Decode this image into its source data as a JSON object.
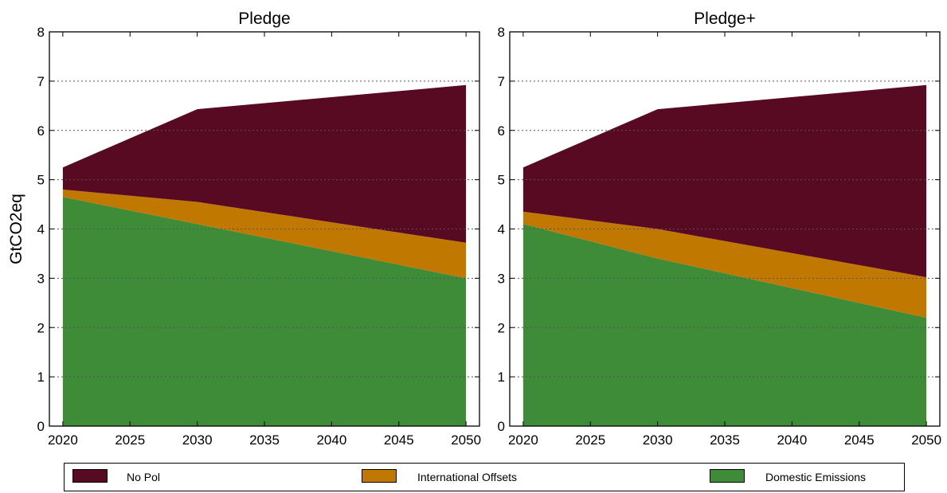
{
  "chart_data": [
    {
      "type": "area",
      "title": "Pledge",
      "ylabel": "GtCO2eq",
      "xlabel": "",
      "x": [
        2020,
        2030,
        2050
      ],
      "xticks": [
        "2020",
        "2025",
        "2030",
        "2035",
        "2040",
        "2045",
        "2050"
      ],
      "yticks": [
        "0",
        "1",
        "2",
        "3",
        "4",
        "5",
        "6",
        "7",
        "8"
      ],
      "xlim": [
        2019,
        2051
      ],
      "ylim": [
        0,
        8
      ],
      "grid": "y-dotted",
      "stacked": true,
      "series": [
        {
          "name": "Domestic Emissions",
          "values": [
            4.65,
            4.1,
            3.0
          ]
        },
        {
          "name": "International Offsets",
          "values": [
            0.15,
            0.45,
            0.72
          ]
        },
        {
          "name": "No Pol",
          "values": [
            0.45,
            1.88,
            3.2
          ]
        }
      ],
      "totals": [
        5.25,
        6.43,
        6.92
      ]
    },
    {
      "type": "area",
      "title": "Pledge+",
      "ylabel": "",
      "xlabel": "",
      "x": [
        2020,
        2030,
        2050
      ],
      "xticks": [
        "2020",
        "2025",
        "2030",
        "2035",
        "2040",
        "2045",
        "2050"
      ],
      "yticks": [
        "0",
        "1",
        "2",
        "3",
        "4",
        "5",
        "6",
        "7",
        "8"
      ],
      "xlim": [
        2019,
        2051
      ],
      "ylim": [
        0,
        8
      ],
      "grid": "y-dotted",
      "stacked": true,
      "series": [
        {
          "name": "Domestic Emissions",
          "values": [
            4.1,
            3.4,
            2.2
          ]
        },
        {
          "name": "International Offsets",
          "values": [
            0.25,
            0.6,
            0.82
          ]
        },
        {
          "name": "No Pol",
          "values": [
            0.9,
            2.43,
            3.9
          ]
        }
      ],
      "totals": [
        5.25,
        6.43,
        6.92
      ]
    }
  ],
  "legend": {
    "placement": "bottom",
    "items": [
      {
        "label": "No Pol",
        "color": "#580a23"
      },
      {
        "label": "International Offsets",
        "color": "#c07800"
      },
      {
        "label": "Domestic Emissions",
        "color": "#3e8b38"
      }
    ]
  },
  "colors": {
    "Domestic Emissions": "#3e8b38",
    "International Offsets": "#c07800",
    "No Pol": "#580a23"
  }
}
